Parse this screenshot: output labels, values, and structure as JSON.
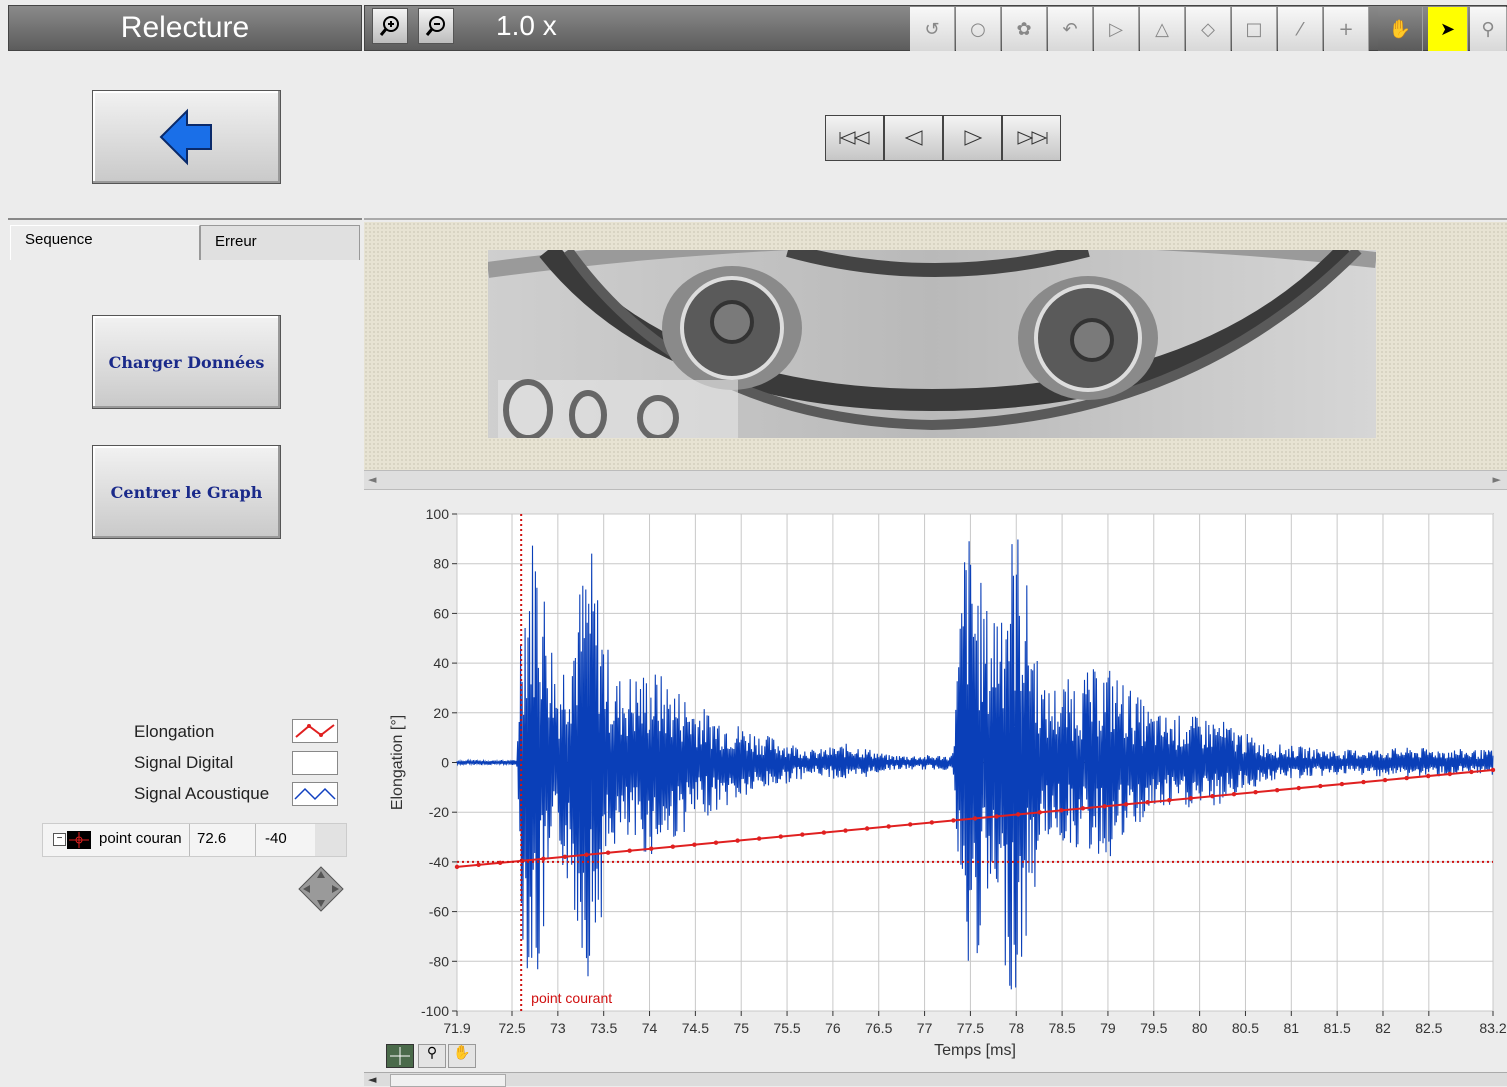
{
  "app": {
    "title": "Relecture",
    "zoom_level": "1.0 x"
  },
  "left_panel": {
    "tabs": [
      {
        "label": "Sequence",
        "active": true
      },
      {
        "label": "Erreur",
        "active": false
      }
    ],
    "buttons": {
      "load_data": "Charger Données",
      "center_graph": "Centrer le Graph"
    },
    "legend": [
      {
        "label": "Elongation",
        "color": "#e02020"
      },
      {
        "label": "Signal Digital",
        "color": "#ffffff"
      },
      {
        "label": "Signal Acoustique",
        "color": "#1040c0"
      }
    ],
    "cursor": {
      "name": "point couran",
      "x": "72.6",
      "y": "-40"
    }
  },
  "colors": {
    "acoustic_signal": "#0a3fb8",
    "elongation": "#e02020",
    "cursor": "#d01010",
    "back_arrow": "#1a6fe8"
  },
  "chart_data": {
    "type": "line",
    "xlabel": "Temps [ms]",
    "ylabel": "Elongation [°]",
    "xlim": [
      71.9,
      83.2
    ],
    "ylim": [
      -100,
      100
    ],
    "x_ticks": [
      "71.9",
      "72.5",
      "73",
      "73.5",
      "74",
      "74.5",
      "75",
      "75.5",
      "76",
      "76.5",
      "77",
      "77.5",
      "78",
      "78.5",
      "79",
      "79.5",
      "80",
      "80.5",
      "81",
      "81.5",
      "82",
      "82.5",
      "83.2"
    ],
    "y_ticks": [
      "100",
      "80",
      "60",
      "40",
      "20",
      "0",
      "-20",
      "-40",
      "-60",
      "-80",
      "-100"
    ],
    "cursor": {
      "label": "point courant",
      "x": 72.6,
      "y": -40
    },
    "series": [
      {
        "name": "Elongation",
        "x": [
          71.9,
          83.2
        ],
        "values": [
          -42,
          -3
        ]
      },
      {
        "name": "Signal Acoustique",
        "envelope": [
          {
            "x": 71.9,
            "amplitude": 1
          },
          {
            "x": 72.55,
            "amplitude": 1
          },
          {
            "x": 72.6,
            "amplitude": 70
          },
          {
            "x": 72.75,
            "amplitude": 100
          },
          {
            "x": 73.0,
            "amplitude": 35
          },
          {
            "x": 73.35,
            "amplitude": 90
          },
          {
            "x": 73.6,
            "amplitude": 35
          },
          {
            "x": 74.05,
            "amplitude": 38
          },
          {
            "x": 74.6,
            "amplitude": 22
          },
          {
            "x": 75.2,
            "amplitude": 12
          },
          {
            "x": 75.8,
            "amplitude": 5
          },
          {
            "x": 76.2,
            "amplitude": 8
          },
          {
            "x": 76.6,
            "amplitude": 3
          },
          {
            "x": 77.3,
            "amplitude": 3
          },
          {
            "x": 77.45,
            "amplitude": 100
          },
          {
            "x": 77.7,
            "amplitude": 60
          },
          {
            "x": 78.0,
            "amplitude": 100
          },
          {
            "x": 78.3,
            "amplitude": 30
          },
          {
            "x": 79.0,
            "amplitude": 40
          },
          {
            "x": 79.5,
            "amplitude": 20
          },
          {
            "x": 80.2,
            "amplitude": 18
          },
          {
            "x": 80.7,
            "amplitude": 8
          },
          {
            "x": 81.5,
            "amplitude": 5
          },
          {
            "x": 82.3,
            "amplitude": 6
          },
          {
            "x": 83.2,
            "amplitude": 5
          }
        ]
      }
    ]
  }
}
